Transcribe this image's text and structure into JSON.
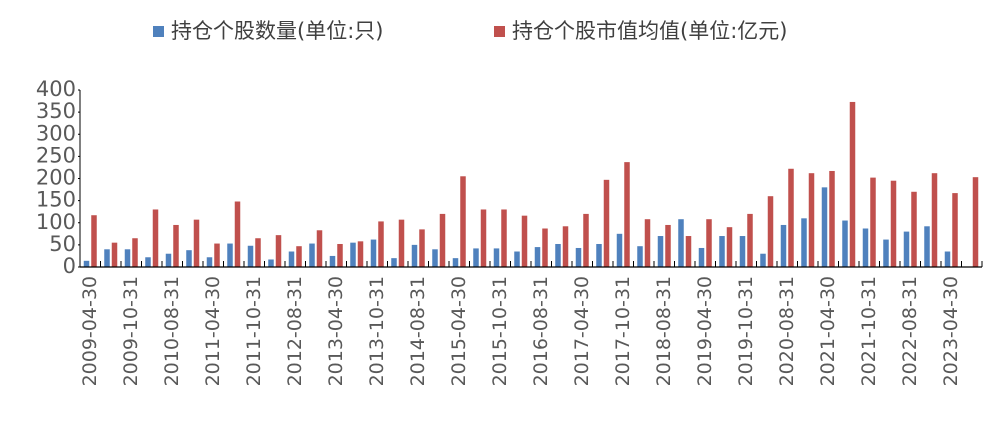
{
  "chart_data": {
    "type": "bar",
    "categories": [
      "2009-04-30",
      null,
      "2009-10-31",
      null,
      "2010-08-31",
      null,
      "2011-04-30",
      null,
      "2011-10-31",
      null,
      "2012-08-31",
      null,
      "2013-04-30",
      null,
      "2013-10-31",
      null,
      "2014-08-31",
      null,
      "2015-04-30",
      null,
      "2015-10-31",
      null,
      "2016-08-31",
      null,
      "2017-04-30",
      null,
      "2017-10-31",
      null,
      "2018-08-31",
      null,
      "2019-04-30",
      null,
      "2019-10-31",
      null,
      "2020-08-31",
      null,
      "2021-04-30",
      null,
      "2021-10-31",
      null,
      "2022-08-31",
      null,
      "2023-04-30",
      null
    ],
    "series": [
      {
        "name": "持仓个股数量(单位:只)",
        "color": "#4f81bd",
        "values": [
          14,
          40,
          40,
          22,
          30,
          38,
          22,
          53,
          48,
          17,
          35,
          53,
          25,
          55,
          62,
          20,
          50,
          40,
          20,
          42,
          42,
          35,
          45,
          52,
          43,
          52,
          75,
          47,
          70,
          108,
          43,
          70,
          70,
          30,
          95,
          110,
          180,
          105,
          87,
          62,
          80,
          92,
          35,
          null
        ]
      },
      {
        "name": "持仓个股市值均值(单位:亿元)",
        "color": "#c0504d",
        "values": [
          117,
          55,
          65,
          130,
          95,
          107,
          53,
          148,
          65,
          72,
          47,
          83,
          52,
          58,
          103,
          107,
          85,
          120,
          205,
          130,
          130,
          116,
          87,
          92,
          120,
          197,
          237,
          108,
          95,
          70,
          108,
          90,
          120,
          160,
          222,
          212,
          217,
          373,
          202,
          195,
          170,
          212,
          167,
          203
        ]
      }
    ],
    "ylim": [
      0,
      400
    ],
    "yticks": [
      0,
      50,
      100,
      150,
      200,
      250,
      300,
      350,
      400
    ]
  }
}
